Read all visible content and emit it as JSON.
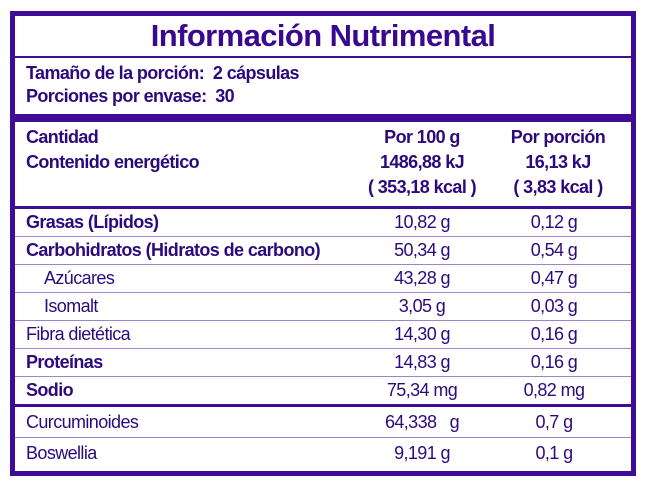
{
  "title": "Información Nutrimental",
  "serving": {
    "size": "Tamaño de la porción:  2 cápsulas",
    "per_container": "Porciones por envase:  30"
  },
  "header": {
    "quantity": "Cantidad",
    "energy": "Contenido energético",
    "col1": "Por 100 g",
    "col1_kj": "1486,88 kJ",
    "col1_kcal": "( 353,18 kcal )",
    "col2": "Por porción",
    "col2_kj": "16,13 kJ",
    "col2_kcal": "( 3,83 kcal )"
  },
  "nutrients": [
    {
      "name": "Grasas (Lípidos)",
      "per100": "10,82 g",
      "perServing": "0,12 g"
    },
    {
      "name": "Carbohidratos (Hidratos de carbono)",
      "per100": "50,34 g",
      "perServing": "0,54 g"
    },
    {
      "name": "Azúcares",
      "per100": "43,28 g",
      "perServing": "0,47 g"
    },
    {
      "name": "Isomalt",
      "per100": "3,05 g",
      "perServing": "0,03 g"
    },
    {
      "name": "Fibra dietética",
      "per100": "14,30 g",
      "perServing": "0,16 g"
    },
    {
      "name": "Proteínas",
      "per100": "14,83 g",
      "perServing": "0,16 g"
    },
    {
      "name": "Sodio",
      "per100": "75,34 mg",
      "perServing": "0,82 mg"
    }
  ],
  "actives": [
    {
      "name": "Curcuminoides",
      "per100": "64,338   g",
      "perServing": "0,7 g"
    },
    {
      "name": "Boswellia",
      "per100": "9,191 g",
      "perServing": "0,1 g"
    }
  ],
  "colors": {
    "border": "#3f0c96",
    "text": "#2c0a7e"
  }
}
